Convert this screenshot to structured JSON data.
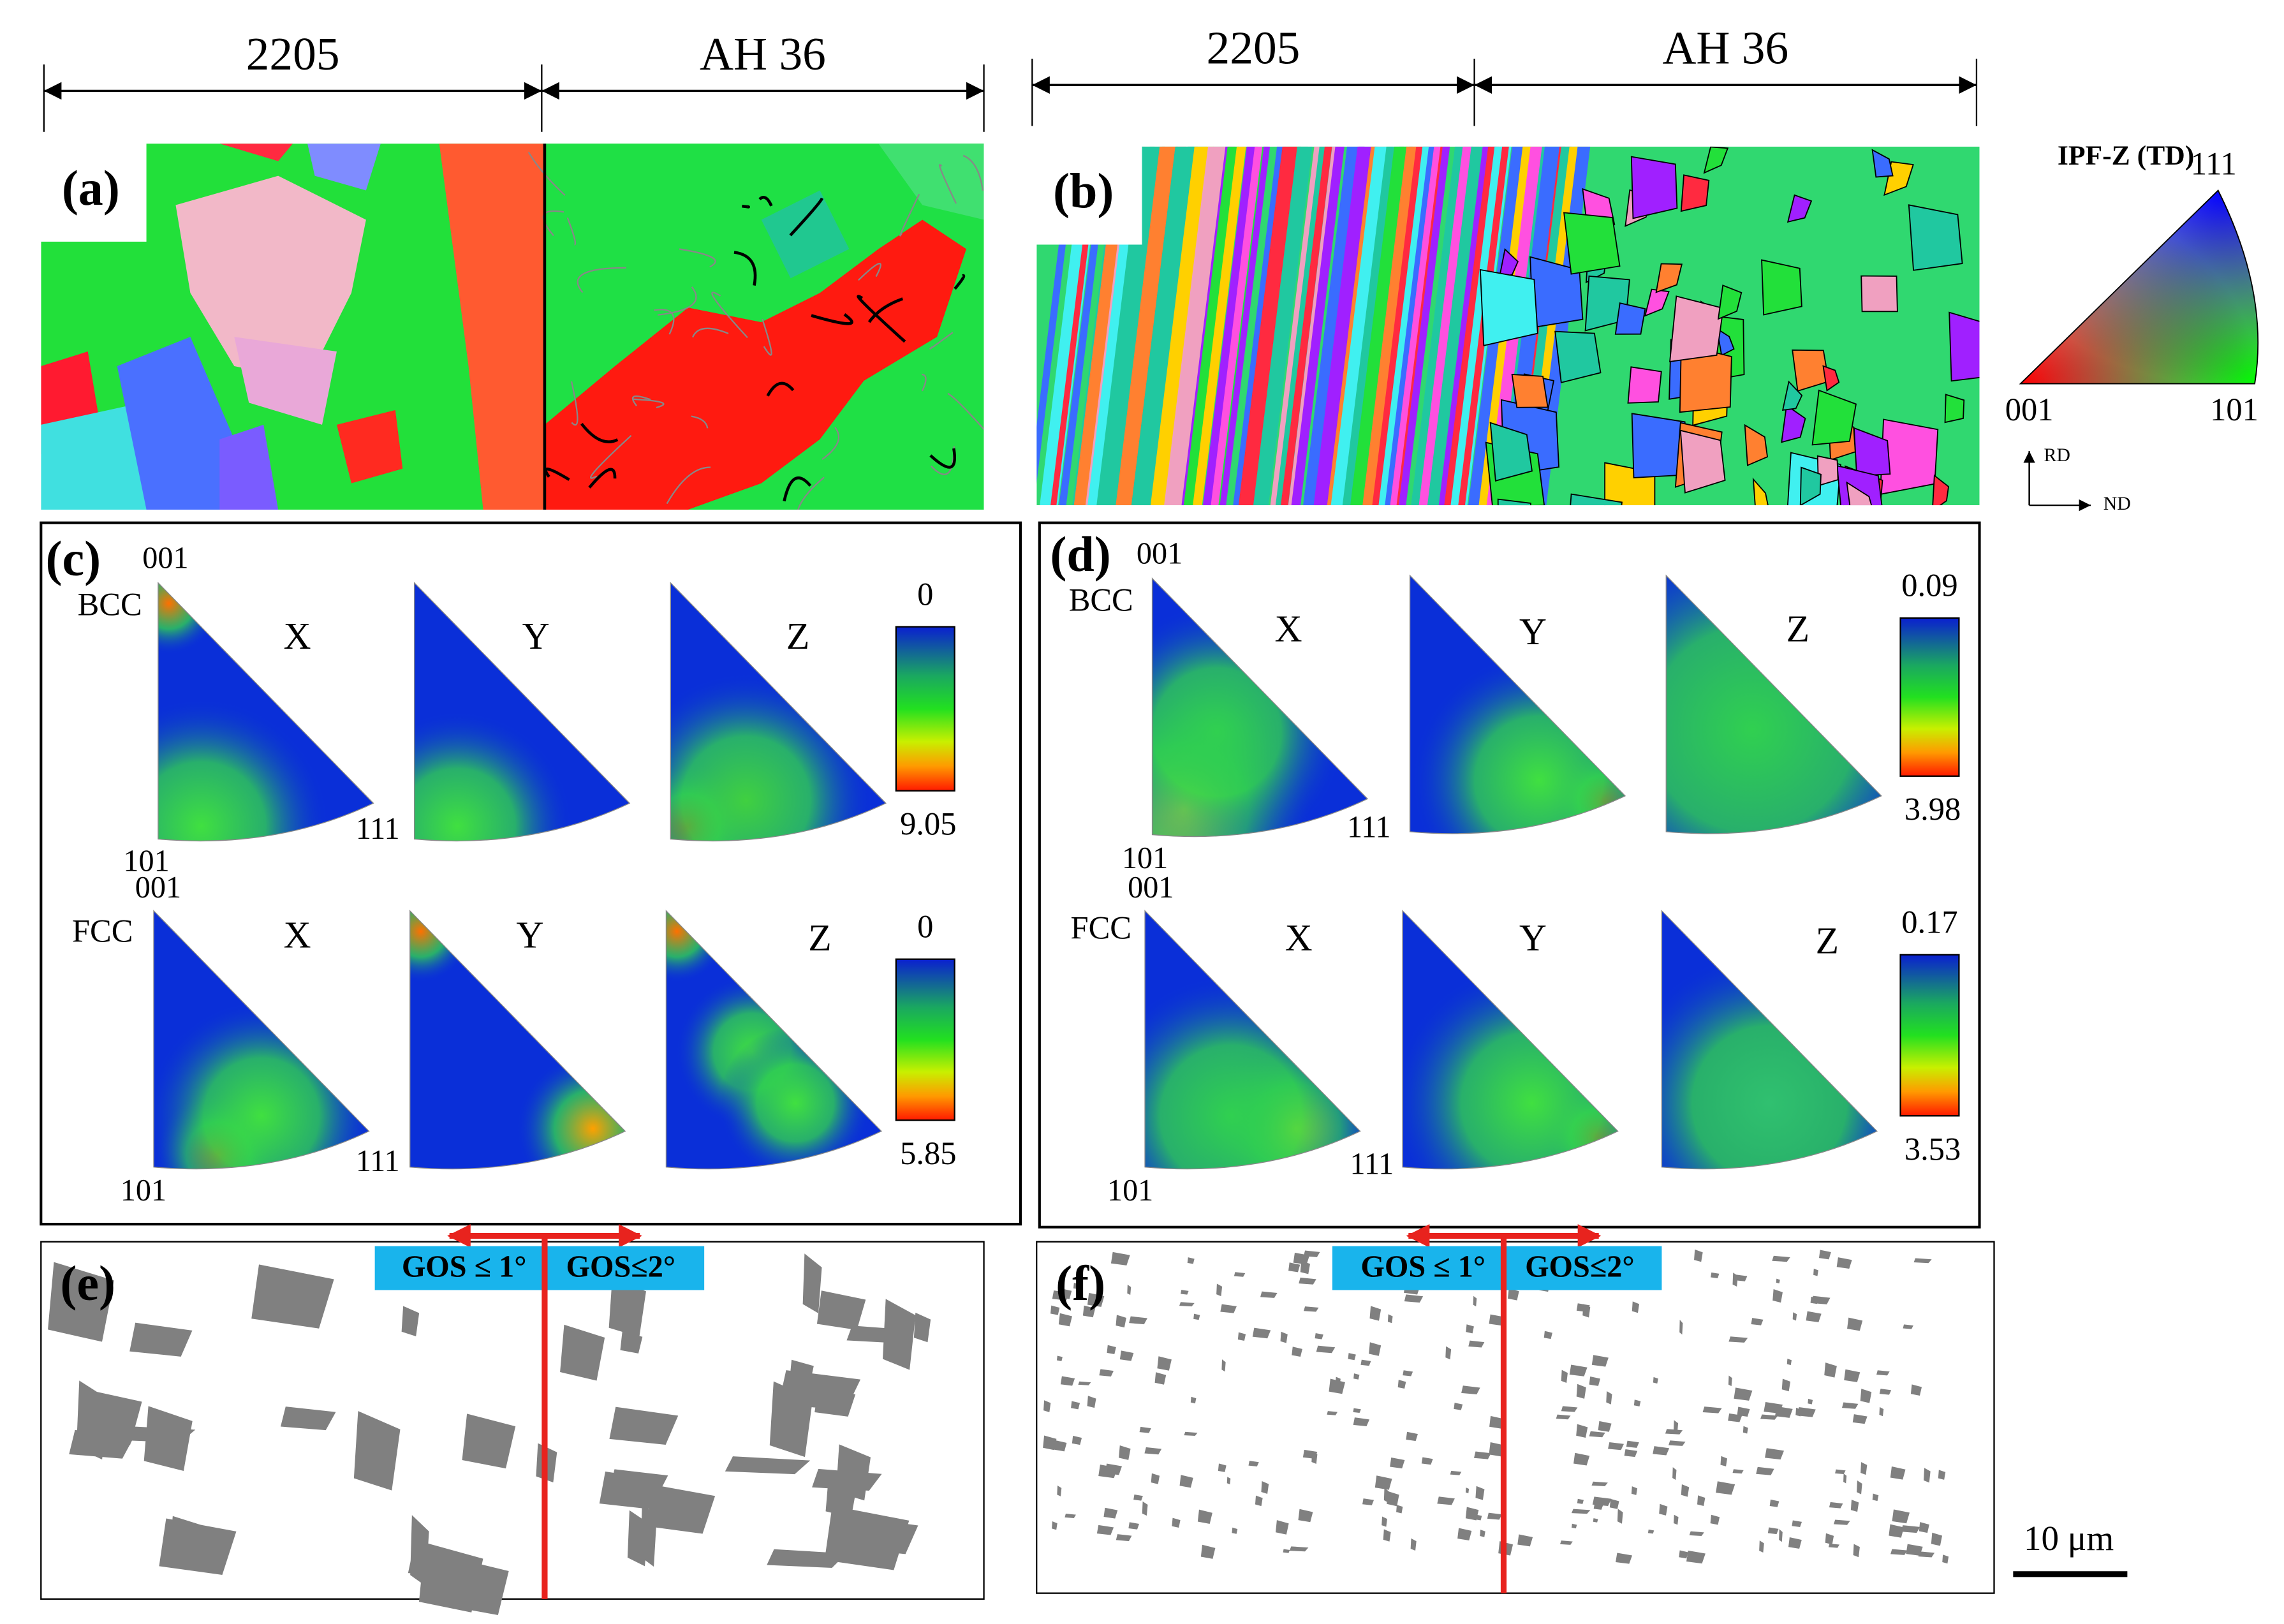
{
  "header": {
    "left": {
      "alloy_1": "2205",
      "alloy_2": "AH 36"
    },
    "right": {
      "alloy_1": "2205",
      "alloy_2": "AH 36"
    }
  },
  "ipf_legend": {
    "title": "IPF-Z (TD)",
    "corner_111": "111",
    "corner_001": "001",
    "corner_101": "101",
    "axis_rd": "RD",
    "axis_nd": "ND"
  },
  "panels": {
    "a": {
      "label": "(a)"
    },
    "b": {
      "label": "(b)"
    },
    "c": {
      "label": "(c)",
      "rows": [
        {
          "phase": "BCC",
          "pole_001": "001",
          "pole_101": "101",
          "pole_111": "111",
          "directions": [
            "X",
            "Y",
            "Z"
          ],
          "scale_min": "0",
          "scale_max": "9.05"
        },
        {
          "phase": "FCC",
          "pole_001": "001",
          "pole_101": "101",
          "pole_111": "111",
          "directions": [
            "X",
            "Y",
            "Z"
          ],
          "scale_min": "0",
          "scale_max": "5.85"
        }
      ]
    },
    "d": {
      "label": "(d)",
      "rows": [
        {
          "phase": "BCC",
          "pole_001": "001",
          "pole_101": "101",
          "pole_111": "111",
          "directions": [
            "X",
            "Y",
            "Z"
          ],
          "scale_min": "0.09",
          "scale_max": "3.98"
        },
        {
          "phase": "FCC",
          "pole_001": "001",
          "pole_101": "101",
          "pole_111": "111",
          "directions": [
            "X",
            "Y",
            "Z"
          ],
          "scale_min": "0.17",
          "scale_max": "3.53"
        }
      ]
    },
    "e": {
      "label": "(e)",
      "gos_left": "GOS ≤ 1°",
      "gos_right": "GOS≤2°"
    },
    "f": {
      "label": "(f)",
      "gos_left": "GOS ≤ 1°",
      "gos_right": "GOS≤2°"
    }
  },
  "scale_bar": "10 μm"
}
